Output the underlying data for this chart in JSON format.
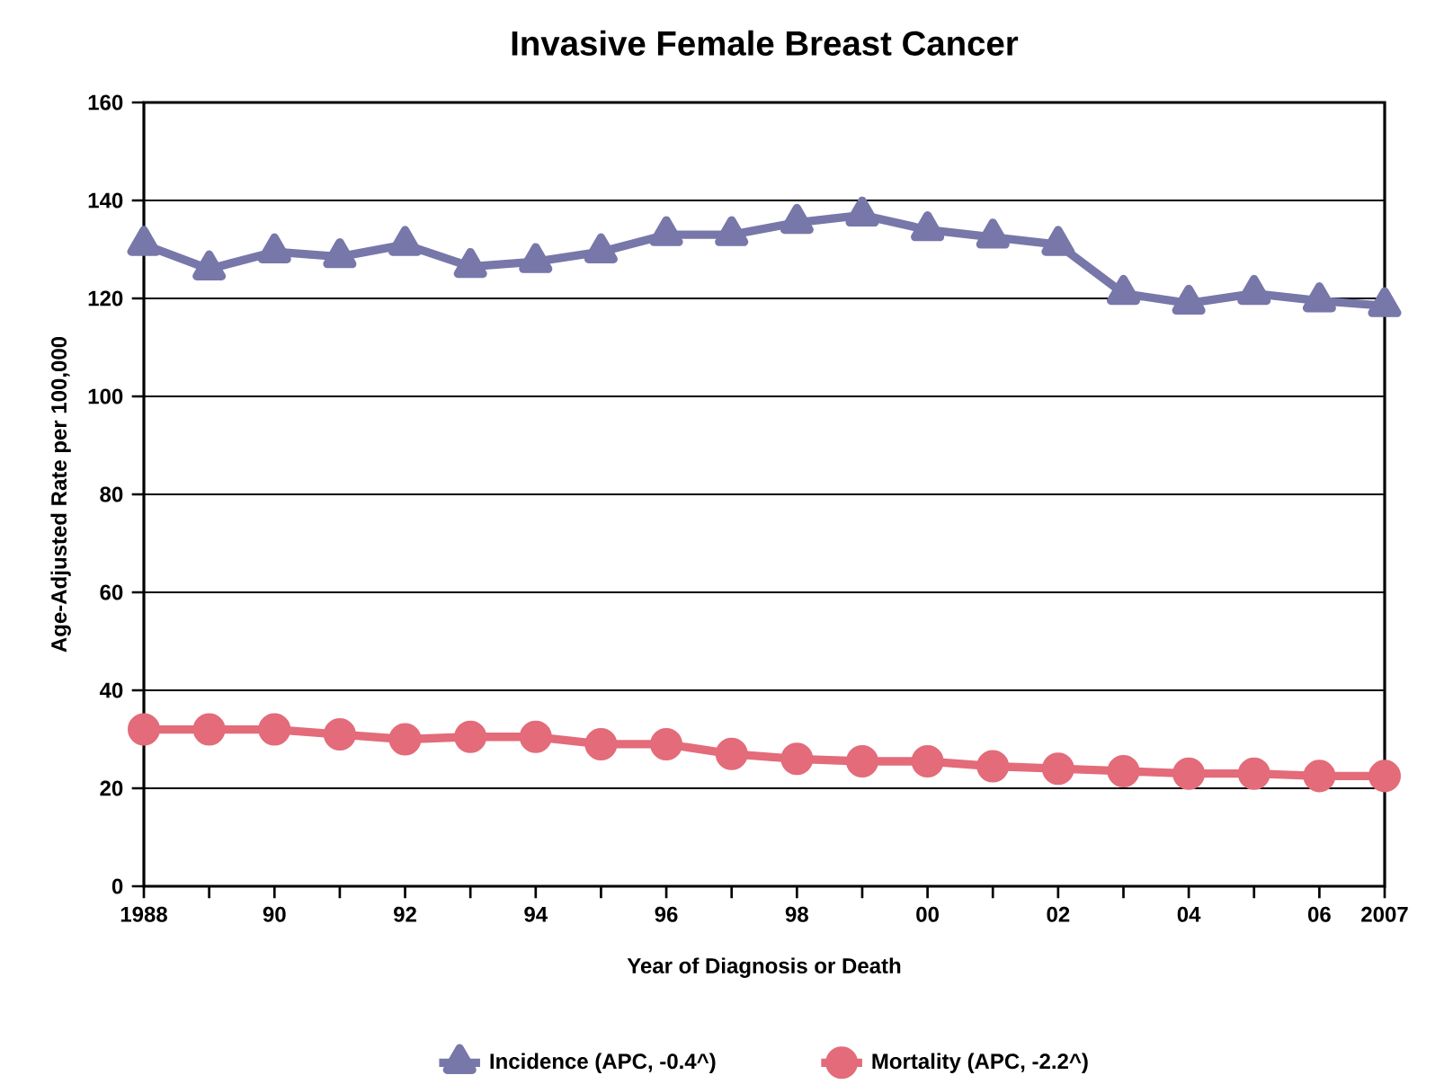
{
  "chart_data": {
    "type": "line",
    "title": "Invasive Female Breast Cancer",
    "xlabel": "Year of Diagnosis or Death",
    "ylabel": "Age-Adjusted Rate per 100,000",
    "x": [
      1988,
      1989,
      1990,
      1991,
      1992,
      1993,
      1994,
      1995,
      1996,
      1997,
      1998,
      1999,
      2000,
      2001,
      2002,
      2003,
      2004,
      2005,
      2006,
      2007
    ],
    "series": [
      {
        "name": "Incidence (APC, -0.4^)",
        "color": "#7777aa",
        "marker": "triangle",
        "values": [
          131,
          126,
          129.5,
          128.5,
          131,
          126.5,
          127.5,
          129.5,
          133,
          133,
          135.5,
          137,
          134,
          132.5,
          131,
          121,
          119,
          121,
          119.5,
          118.5
        ]
      },
      {
        "name": "Mortality (APC, -2.2^)",
        "color": "#e36b7a",
        "marker": "circle",
        "values": [
          32,
          32,
          32,
          31,
          30,
          30.5,
          30.5,
          29,
          29,
          27,
          26,
          25.5,
          25.5,
          24.5,
          24,
          23.5,
          23,
          23,
          22.5,
          22.5
        ]
      }
    ],
    "xlim": [
      1988,
      2007
    ],
    "ylim": [
      0,
      160
    ],
    "xticks": [
      1988,
      {
        "value": 1989,
        "label": null
      },
      {
        "value": 1990,
        "label": "90"
      },
      {
        "value": 1991,
        "label": null
      },
      {
        "value": 1992,
        "label": "92"
      },
      {
        "value": 1993,
        "label": null
      },
      {
        "value": 1994,
        "label": "94"
      },
      {
        "value": 1995,
        "label": null
      },
      {
        "value": 1996,
        "label": "96"
      },
      {
        "value": 1997,
        "label": null
      },
      {
        "value": 1998,
        "label": "98"
      },
      {
        "value": 1999,
        "label": null
      },
      {
        "value": 2000,
        "label": "00"
      },
      {
        "value": 2001,
        "label": null
      },
      {
        "value": 2002,
        "label": "02"
      },
      {
        "value": 2003,
        "label": null
      },
      {
        "value": 2004,
        "label": "04"
      },
      {
        "value": 2005,
        "label": null
      },
      {
        "value": 2006,
        "label": "06"
      },
      2007
    ],
    "yticks": [
      0,
      20,
      40,
      60,
      80,
      100,
      120,
      140,
      160
    ],
    "grid": "y",
    "legend": "bottom",
    "line_style": "solid"
  }
}
